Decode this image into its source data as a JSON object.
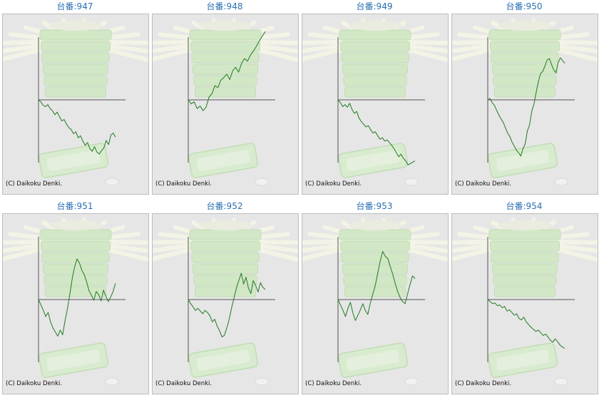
{
  "copyright": "(C) Daikoku Denki.",
  "colors": {
    "line": "#1f7a1f",
    "axis": "#555555",
    "title": "#2a6fb4",
    "panel_bg": "#e6e6e6"
  },
  "background_motif": "faded green slot-machine tray stack with light rays",
  "chart_data": [
    {
      "type": "line",
      "title": "台番:947",
      "values": [
        0,
        -3,
        -8,
        -10,
        -7,
        -13,
        -16,
        -22,
        -18,
        -25,
        -31,
        -29,
        -36,
        -41,
        -44,
        -50,
        -47,
        -56,
        -53,
        -61,
        -67,
        -63,
        -72,
        -76,
        -69,
        -77,
        -80,
        -75,
        -71,
        -60,
        -66,
        -52,
        -49,
        -55
      ]
    },
    {
      "type": "line",
      "title": "台番:948",
      "values": [
        0,
        -6,
        -3,
        -13,
        -9,
        -16,
        -11,
        4,
        9,
        21,
        18,
        29,
        33,
        38,
        30,
        43,
        48,
        41,
        54,
        61,
        57,
        66,
        72,
        79,
        87,
        94,
        101
      ]
    },
    {
      "type": "line",
      "title": "台番:949",
      "values": [
        0,
        -4,
        -10,
        -7,
        -11,
        -5,
        -14,
        -20,
        -17,
        -27,
        -32,
        -36,
        -40,
        -38,
        -44,
        -49,
        -47,
        -53,
        -58,
        -56,
        -61,
        -59,
        -63,
        -67,
        -72,
        -78,
        -84,
        -80,
        -86,
        -90,
        -96,
        -94,
        -92,
        -90
      ]
    },
    {
      "type": "line",
      "title": "台番:950",
      "values": [
        0,
        2,
        -4,
        -8,
        -15,
        -22,
        -28,
        -33,
        -41,
        -49,
        -54,
        -62,
        -68,
        -74,
        -78,
        -83,
        -72,
        -65,
        -46,
        -37,
        -17,
        -6,
        11,
        27,
        39,
        42,
        50,
        59,
        61,
        52,
        44,
        40,
        55,
        62,
        58,
        54
      ]
    },
    {
      "type": "line",
      "title": "台番:951",
      "values": [
        0,
        -8,
        -16,
        -25,
        -19,
        -33,
        -42,
        -48,
        -54,
        -45,
        -52,
        -32,
        -14,
        8,
        31,
        48,
        60,
        54,
        43,
        37,
        26,
        13,
        6,
        -1,
        12,
        7,
        -2,
        14,
        5,
        -3,
        4,
        12,
        24
      ]
    },
    {
      "type": "line",
      "title": "台番:952",
      "values": [
        0,
        -6,
        -11,
        -16,
        -13,
        -17,
        -21,
        -16,
        -19,
        -24,
        -33,
        -29,
        -39,
        -46,
        -55,
        -53,
        -42,
        -29,
        -12,
        2,
        17,
        28,
        39,
        23,
        33,
        17,
        9,
        28,
        21,
        11,
        25,
        18,
        15
      ]
    },
    {
      "type": "line",
      "title": "台番:953",
      "values": [
        0,
        -8,
        -16,
        -25,
        -13,
        -4,
        -20,
        -31,
        -23,
        -15,
        -6,
        -16,
        -22,
        -5,
        8,
        21,
        39,
        57,
        71,
        64,
        61,
        49,
        38,
        24,
        12,
        3,
        -3,
        -6,
        8,
        22,
        35,
        31
      ]
    },
    {
      "type": "line",
      "title": "台番:954",
      "values": [
        0,
        -3,
        -6,
        -5,
        -9,
        -8,
        -12,
        -10,
        -17,
        -15,
        -19,
        -23,
        -21,
        -28,
        -30,
        -26,
        -33,
        -37,
        -41,
        -44,
        -47,
        -45,
        -49,
        -53,
        -51,
        -55,
        -60,
        -63,
        -58,
        -62,
        -67,
        -70,
        -72
      ]
    }
  ]
}
